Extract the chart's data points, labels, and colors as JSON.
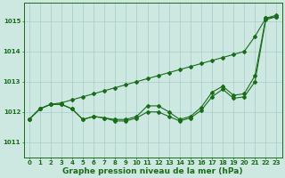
{
  "x": [
    0,
    1,
    2,
    3,
    4,
    5,
    6,
    7,
    8,
    9,
    10,
    11,
    12,
    13,
    14,
    15,
    16,
    17,
    18,
    19,
    20,
    21,
    22,
    23
  ],
  "y_main": [
    1011.75,
    1012.1,
    1012.25,
    1012.25,
    1012.1,
    1011.75,
    1011.85,
    1011.8,
    1011.75,
    1011.75,
    1011.85,
    1012.2,
    1012.2,
    1012.0,
    1011.75,
    1011.85,
    1012.15,
    1012.65,
    1012.85,
    1012.55,
    1012.6,
    1013.2,
    1015.1,
    1015.15
  ],
  "y_max": [
    1011.75,
    1012.1,
    1012.25,
    1012.3,
    1012.4,
    1012.5,
    1012.6,
    1012.7,
    1012.8,
    1012.9,
    1013.0,
    1013.1,
    1013.2,
    1013.3,
    1013.4,
    1013.5,
    1013.6,
    1013.7,
    1013.8,
    1013.9,
    1014.0,
    1014.5,
    1015.1,
    1015.2
  ],
  "y_min": [
    1011.75,
    1012.1,
    1012.25,
    1012.25,
    1012.1,
    1011.75,
    1011.85,
    1011.8,
    1011.7,
    1011.7,
    1011.8,
    1012.0,
    1012.0,
    1011.85,
    1011.7,
    1011.8,
    1012.05,
    1012.5,
    1012.75,
    1012.45,
    1012.5,
    1013.0,
    1015.05,
    1015.15
  ],
  "background_color": "#cce8e0",
  "grid_color": "#aacccc",
  "line_color": "#1a6b1a",
  "xlabel": "Graphe pression niveau de la mer (hPa)",
  "ylim": [
    1010.5,
    1015.6
  ],
  "yticks": [
    1011,
    1012,
    1013,
    1014,
    1015
  ],
  "xticks": [
    0,
    1,
    2,
    3,
    4,
    5,
    6,
    7,
    8,
    9,
    10,
    11,
    12,
    13,
    14,
    15,
    16,
    17,
    18,
    19,
    20,
    21,
    22,
    23
  ],
  "xlabel_fontsize": 6.5,
  "tick_fontsize": 5.0,
  "marker_size": 2.0,
  "line_width": 0.8
}
